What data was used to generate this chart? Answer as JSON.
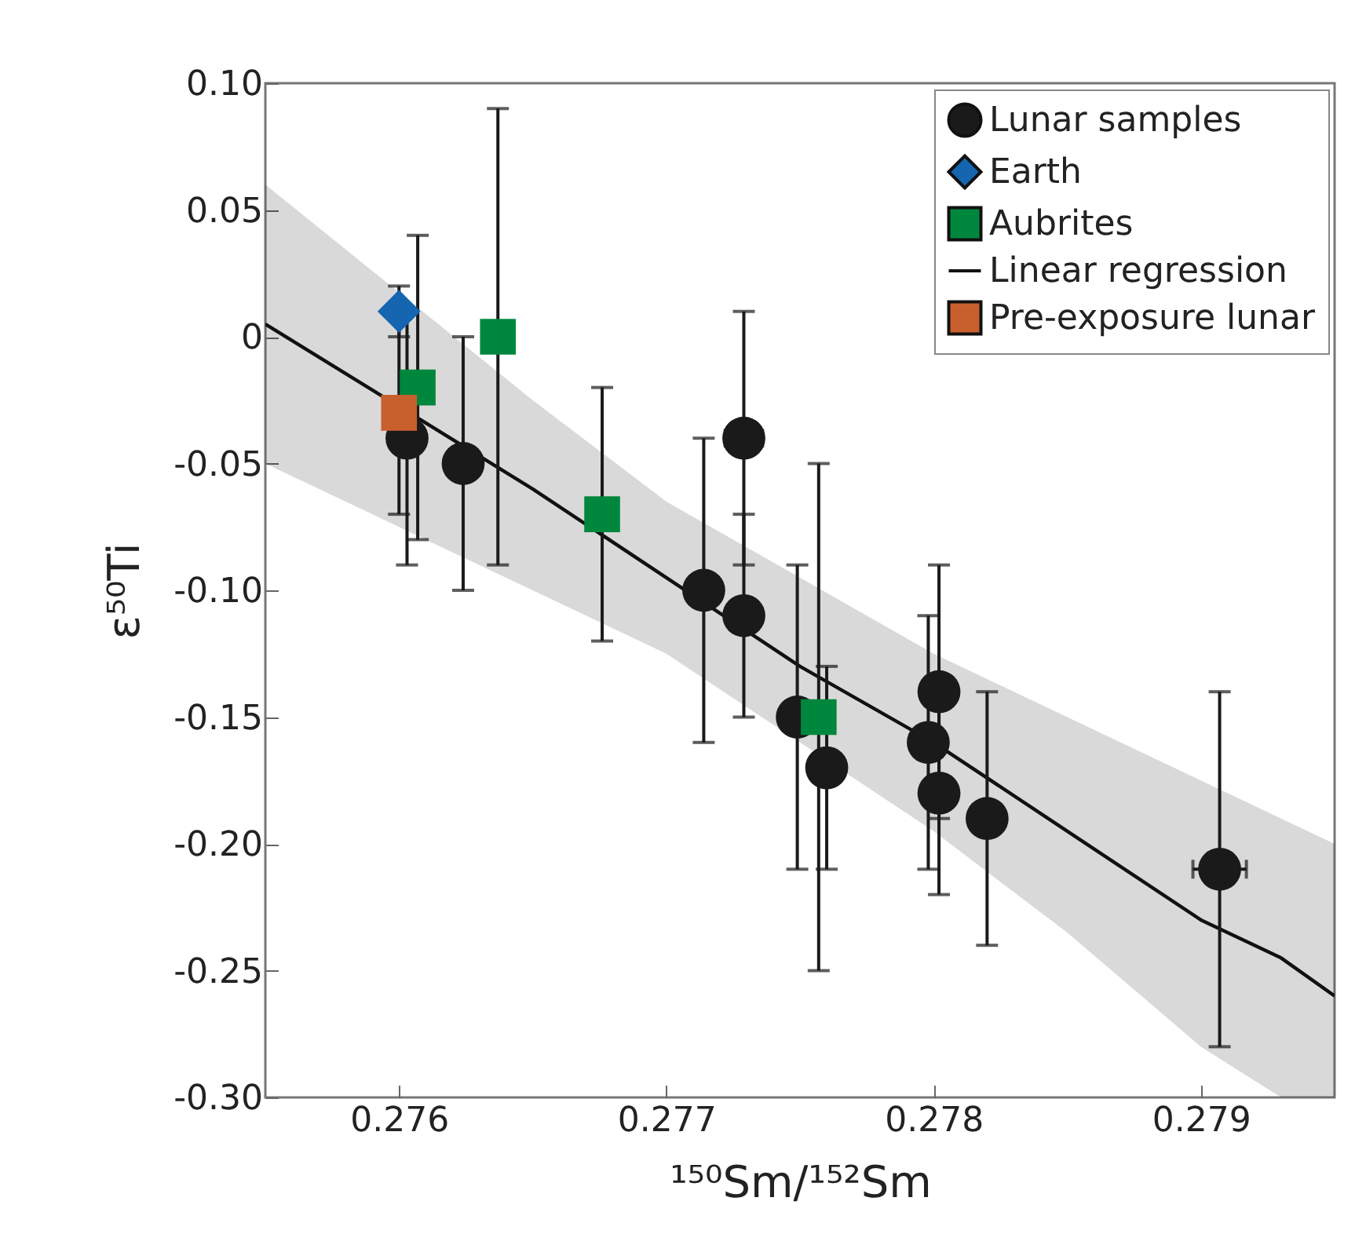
{
  "chart_data": {
    "type": "scatter",
    "xlabel": "¹⁵⁰Sm/¹⁵²Sm",
    "ylabel": "ε⁵⁰Ti",
    "xlim": [
      0.2755,
      0.2795
    ],
    "xticks": [
      0.276,
      0.277,
      0.278,
      0.279
    ],
    "ylim": [
      -0.3,
      0.1
    ],
    "yticks": [
      {
        "value": 0.1,
        "label": "0.10"
      },
      0.05,
      0,
      -0.05,
      {
        "value": -0.1,
        "label": "-0.10"
      },
      -0.15,
      {
        "value": -0.2,
        "label": "-0.20"
      },
      -0.25,
      {
        "value": -0.3,
        "label": "-0.30"
      }
    ],
    "grid": false,
    "legend": "top right",
    "series": [
      {
        "name": "Lunar samples",
        "color": "#1a1a1a",
        "marker": "circle",
        "x": [
          0.27603,
          0.27624,
          0.27714,
          0.27729,
          0.27729,
          0.27749,
          0.2776,
          0.27798,
          0.27802,
          0.27802,
          0.2782,
          0.27907
        ],
        "values": [
          -0.04,
          -0.05,
          -0.1,
          -0.04,
          -0.11,
          -0.15,
          -0.17,
          -0.16,
          -0.14,
          -0.18,
          -0.19,
          -0.21
        ],
        "errors": [
          0.05,
          0.05,
          0.06,
          0.05,
          0.04,
          0.06,
          0.04,
          0.05,
          0.05,
          0.04,
          0.05,
          0.07
        ],
        "xerrors": [
          null,
          null,
          null,
          7e-05,
          null,
          null,
          null,
          null,
          null,
          null,
          null,
          0.0001
        ]
      },
      {
        "name": "Earth",
        "color": "#1565b0",
        "marker": "diamond",
        "x": [
          0.276
        ],
        "values": [
          0.01
        ],
        "errors": [
          0.01
        ]
      },
      {
        "name": "Aubrites",
        "color": "#00873e",
        "marker": "square",
        "x": [
          0.27607,
          0.27637,
          0.27676,
          0.27757
        ],
        "values": [
          -0.02,
          0,
          -0.07,
          -0.15
        ],
        "errors": [
          0.06,
          0.09,
          0.05,
          0.1
        ]
      },
      {
        "name": "Linear regression",
        "type": "line",
        "color": "#111111",
        "marker": "none",
        "x": [
          0.2755,
          0.2765,
          0.277,
          0.2775,
          0.278,
          0.2785,
          0.279,
          0.2793,
          0.2795
        ],
        "values": [
          0.005,
          -0.06,
          -0.095,
          -0.13,
          -0.16,
          -0.195,
          -0.23,
          -0.245,
          -0.26
        ],
        "upper": [
          0.06,
          -0.025,
          -0.065,
          -0.095,
          -0.125,
          -0.15,
          -0.175,
          -0.19,
          -0.2
        ],
        "lower": [
          -0.05,
          -0.1,
          -0.125,
          -0.16,
          -0.195,
          -0.235,
          -0.28,
          -0.3,
          -0.3
        ]
      },
      {
        "name": "Pre-exposure lunar",
        "color": "#c8602e",
        "marker": "square",
        "x": [
          0.276
        ],
        "values": [
          -0.03
        ],
        "errors": [
          0.04
        ]
      }
    ]
  }
}
